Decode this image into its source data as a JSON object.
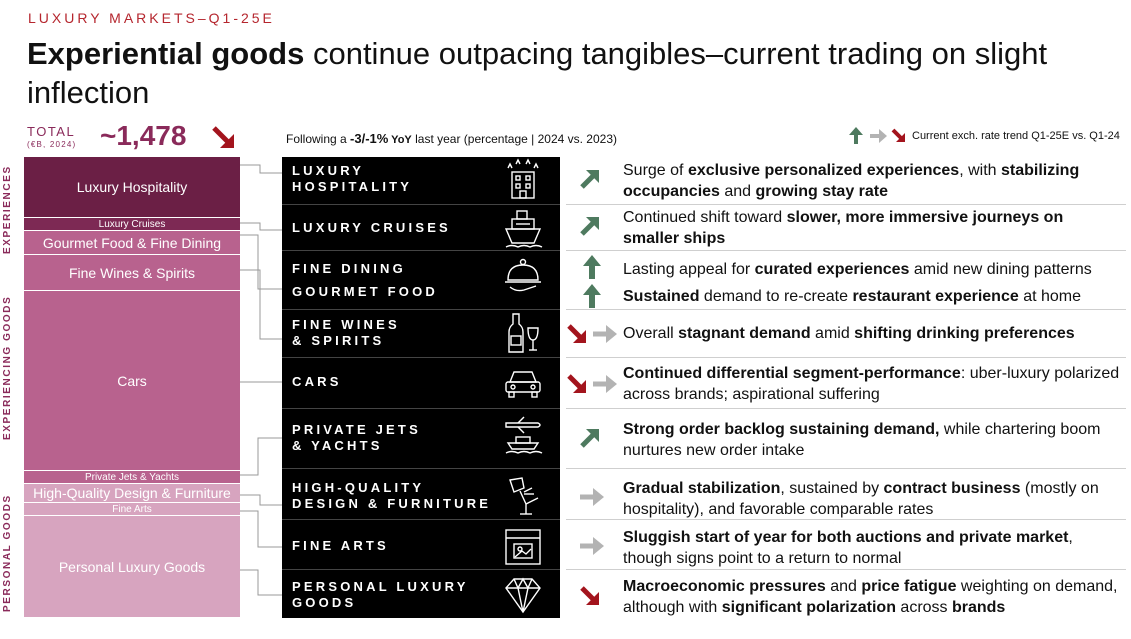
{
  "header": {
    "kicker": "LUXURY MARKETS–Q1-25E",
    "title_bold": "Experiential goods",
    "title_rest": " continue outpacing tangibles–current trading on slight inflection"
  },
  "total": {
    "label": "TOTAL",
    "sub": "(€B, 2024)",
    "value": "~1,478"
  },
  "side_labels": {
    "experiences": "EXPERIENCES",
    "experiencing": "EXPERIENCING GOODS",
    "personal": "PERSONAL GOODS"
  },
  "following": {
    "prefix": "Following a ",
    "value": "-3/-1%",
    "yoy": " YoY",
    "suffix": " last year (percentage | 2024 vs. 2023)"
  },
  "legend": {
    "text": "Current exch. rate trend Q1-25E vs. Q1-24"
  },
  "colors": {
    "up": "#4e7a5f",
    "flat": "#b3b3b3",
    "down": "#a3141d",
    "accent": "#8a2a5a"
  },
  "segments": [
    {
      "label": "Luxury Hospitality",
      "color": "#6b1f45"
    },
    {
      "label": "Luxury Cruises",
      "color": "#7d2954"
    },
    {
      "label": "Gourmet Food & Fine Dining",
      "color": "#b8628e"
    },
    {
      "label": "Fine Wines & Spirits",
      "color": "#b8628e"
    },
    {
      "label": "Cars",
      "color": "#b8628e"
    },
    {
      "label": "Private Jets & Yachts",
      "color": "#b8628e"
    },
    {
      "label": "High-Quality Design & Furniture",
      "color": "#d7a4bf"
    },
    {
      "label": "Fine Arts",
      "color": "#d7a4bf"
    },
    {
      "label": "Personal Luxury Goods",
      "color": "#d7a4bf"
    }
  ],
  "rows": [
    {
      "cat": [
        "LUXURY",
        "HOSPITALITY"
      ],
      "icon": "hotel-icon",
      "trend": "up",
      "desc": [
        [
          "Surge of ",
          false
        ],
        [
          "exclusive personalized experiences",
          true
        ],
        [
          ", with ",
          false
        ],
        [
          "stabilizing occupancies",
          true
        ],
        [
          " and ",
          false
        ],
        [
          "growing stay rate",
          true
        ]
      ]
    },
    {
      "cat": [
        "LUXURY CRUISES"
      ],
      "icon": "ship-icon",
      "trend": "up",
      "desc": [
        [
          "Continued shift toward ",
          false
        ],
        [
          "slower, more immersive journeys on smaller ships",
          true
        ]
      ]
    },
    {
      "cat": [
        "FINE DINING"
      ],
      "icon": "cloche-icon",
      "trend": "up-strong",
      "desc": [
        [
          "Lasting appeal for ",
          false
        ],
        [
          "curated experiences",
          true
        ],
        [
          " amid new dining patterns",
          false
        ]
      ]
    },
    {
      "cat": [
        "GOURMET FOOD"
      ],
      "icon": "",
      "trend": "up-strong",
      "desc": [
        [
          "Sustained",
          true
        ],
        [
          " demand to re-create ",
          false
        ],
        [
          "restaurant experience",
          true
        ],
        [
          " at home",
          false
        ]
      ]
    },
    {
      "cat": [
        "FINE WINES",
        "& SPIRITS"
      ],
      "icon": "wine-icon",
      "trend": "down-flat",
      "desc": [
        [
          "Overall ",
          false
        ],
        [
          "stagnant demand",
          true
        ],
        [
          " amid ",
          false
        ],
        [
          "shifting drinking preferences",
          true
        ]
      ]
    },
    {
      "cat": [
        "CARS"
      ],
      "icon": "car-icon",
      "trend": "down-flat",
      "desc": [
        [
          "Continued differential segment-performance",
          true
        ],
        [
          ": uber-luxury polarized across brands; aspirational suffering",
          false
        ]
      ]
    },
    {
      "cat": [
        "PRIVATE JETS",
        "& YACHTS"
      ],
      "icon": "jet-yacht-icon",
      "trend": "up",
      "desc": [
        [
          "Strong order backlog sustaining demand,",
          true
        ],
        [
          " while chartering boom nurtures new order intake",
          false
        ]
      ]
    },
    {
      "cat": [
        "HIGH-QUALITY",
        "DESIGN & FURNITURE"
      ],
      "icon": "lamp-icon",
      "trend": "flat",
      "desc": [
        [
          "Gradual stabilization",
          true
        ],
        [
          ", sustained by ",
          false
        ],
        [
          "contract business",
          true
        ],
        [
          " (mostly on hospitality), and favorable comparable rates",
          false
        ]
      ]
    },
    {
      "cat": [
        "FINE ARTS"
      ],
      "icon": "easel-icon",
      "trend": "flat",
      "desc": [
        [
          "Sluggish start of year for both auctions and private market",
          true
        ],
        [
          ", though signs point to a return to normal",
          false
        ]
      ]
    },
    {
      "cat": [
        "PERSONAL LUXURY",
        "GOODS"
      ],
      "icon": "diamond-icon",
      "trend": "down",
      "desc": [
        [
          "Macroeconomic pressures",
          true
        ],
        [
          " and ",
          false
        ],
        [
          "price fatigue",
          true
        ],
        [
          " weighting on demand, although with ",
          false
        ],
        [
          "significant polarization",
          true
        ],
        [
          " across ",
          false
        ],
        [
          "brands",
          true
        ]
      ]
    }
  ]
}
